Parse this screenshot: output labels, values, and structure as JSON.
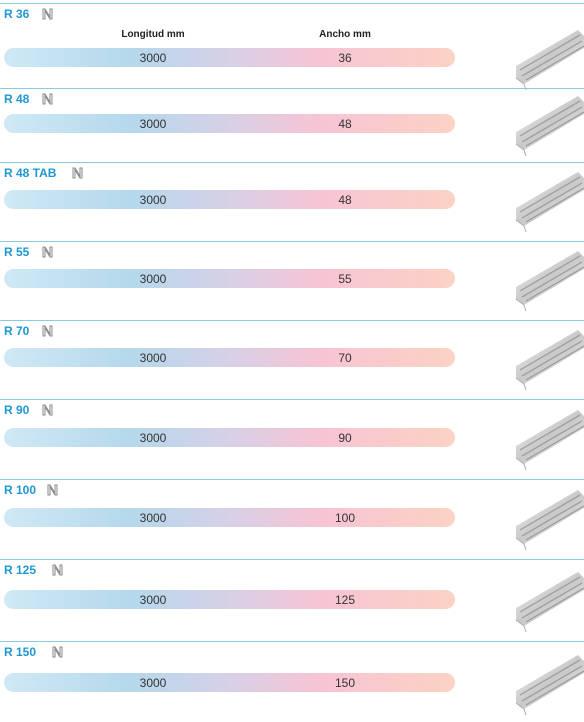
{
  "header": {
    "columns": [
      "Longitud mm",
      "Ancho mm"
    ]
  },
  "rows": [
    {
      "name": "R 36",
      "length": 3000,
      "width": 36
    },
    {
      "name": "R 48",
      "length": 3000,
      "width": 48
    },
    {
      "name": "R 48 TAB",
      "length": 3000,
      "width": 48
    },
    {
      "name": "R 55",
      "length": 3000,
      "width": 55
    },
    {
      "name": "R 70",
      "length": 3000,
      "width": 70
    },
    {
      "name": "R 90",
      "length": 3000,
      "width": 90
    },
    {
      "name": "R 100",
      "length": 3000,
      "width": 100
    },
    {
      "name": "R 125",
      "length": 3000,
      "width": 125
    },
    {
      "name": "R 150",
      "length": 3000,
      "width": 150
    }
  ]
}
